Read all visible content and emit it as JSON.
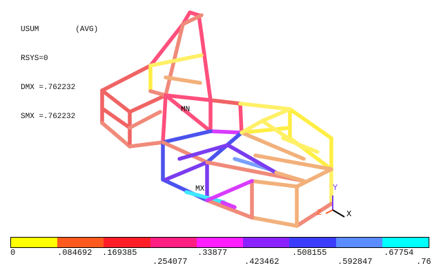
{
  "info": {
    "line1": "USUM        (AVG)",
    "line2": "RSYS=0",
    "line3": "DMX =.762232",
    "line4": "SMX =.762232"
  },
  "labels": {
    "min": "MN",
    "max": "MX",
    "axis_x": "X",
    "axis_y": "Y",
    "axis_z": "Z"
  },
  "legend": {
    "colors": [
      "#ffff00",
      "#ff5a1e",
      "#ff1e28",
      "#ff1e82",
      "#ff1eff",
      "#8a22ff",
      "#3c3cff",
      "#5a8cff",
      "#00ffff"
    ],
    "ticks_top": [
      ".169385",
      ".33877",
      ".508155",
      ".67754"
    ],
    "ticks_bottom": [
      "0",
      ".084692",
      ".254077",
      ".423462",
      ".592847",
      ".76"
    ]
  },
  "frame_colors": {
    "red": "#f06464",
    "pink": "#ff4f7c",
    "salmon": "#f08a7a",
    "orange": "#f2906a",
    "yellow": "#ffee44",
    "paleyellow": "#fff066",
    "peach": "#f2b07a",
    "magenta": "#d83cff",
    "violet": "#7a3cf0",
    "blue": "#4b52ee",
    "lightblue": "#7aa0ff",
    "cyan": "#3de8ff"
  }
}
